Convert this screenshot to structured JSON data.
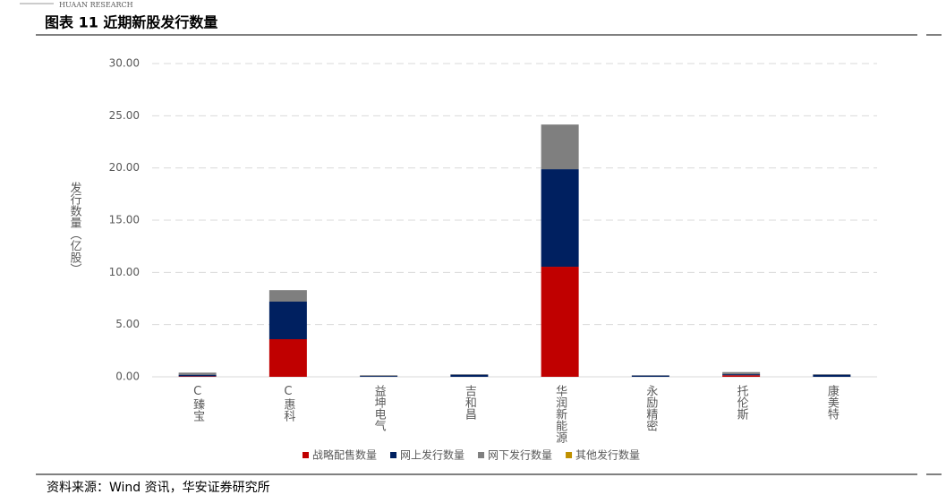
{
  "header": {
    "brand": "HUAAN RESEARCH",
    "title": "图表 11 近期新股发行数量"
  },
  "chart_data": {
    "type": "stacked-bar",
    "y_label": "发行数量（亿股）",
    "categories": [
      "C臻宝",
      "C惠科",
      "益坤电气",
      "吉和昌",
      "华润新能源",
      "永励精密",
      "托伦斯",
      "康美特"
    ],
    "series": [
      {
        "name": "战略配售数量",
        "color": "#c00000",
        "values": [
          0.05,
          3.6,
          0,
          0,
          10.54,
          0,
          0.15,
          0
        ]
      },
      {
        "name": "网上发行数量",
        "color": "#002060",
        "values": [
          0.15,
          3.6,
          0.08,
          0.2,
          9.34,
          0.12,
          0.1,
          0.2
        ]
      },
      {
        "name": "网下发行数量",
        "color": "#7f7f7f",
        "values": [
          0.2,
          1.1,
          0.07,
          0.05,
          4.28,
          0.03,
          0.2,
          0.05
        ]
      },
      {
        "name": "其他发行数量",
        "color": "#bf9000",
        "values": [
          0,
          0,
          0,
          0,
          0,
          0,
          0,
          0
        ]
      }
    ],
    "ylim": [
      0,
      30
    ],
    "yticks": [
      {
        "value": 0,
        "label": "0.00"
      },
      {
        "value": 5,
        "label": "5.00"
      },
      {
        "value": 10,
        "label": "10.00"
      },
      {
        "value": 15,
        "label": "15.00"
      },
      {
        "value": 20,
        "label": "20.00"
      },
      {
        "value": 25,
        "label": "25.00"
      },
      {
        "value": 30,
        "label": "30.00"
      }
    ],
    "grid": true,
    "legend": "bottom"
  },
  "footer": {
    "source": "资料来源：Wind 资讯，华安证券研究所"
  }
}
